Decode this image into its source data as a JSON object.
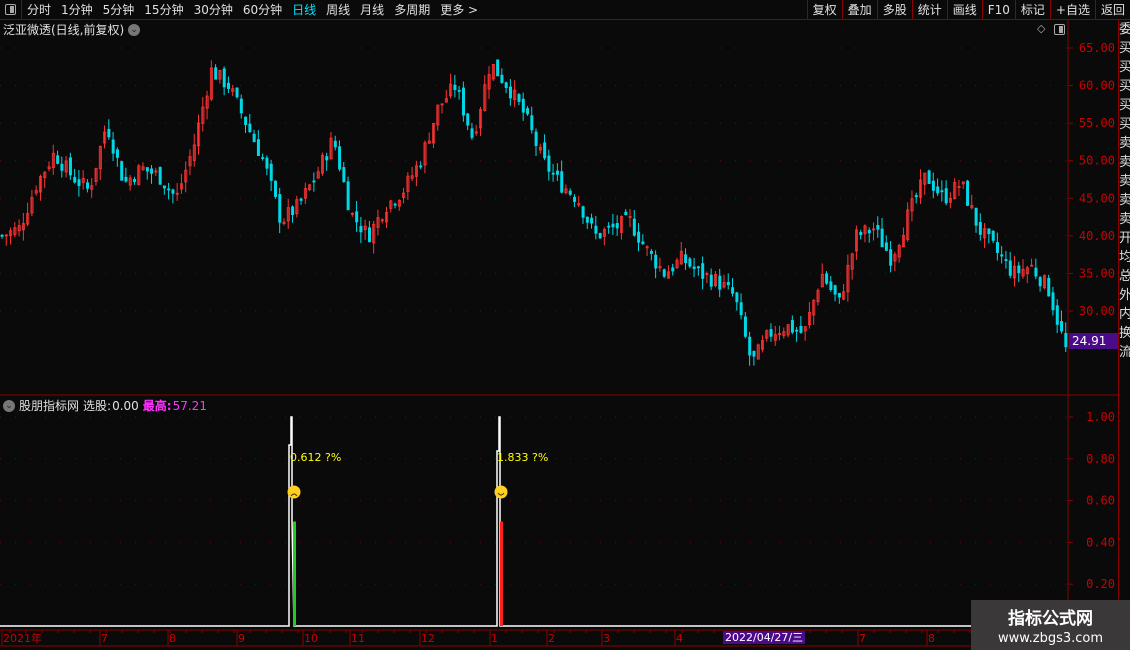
{
  "toolbar": {
    "periods": [
      "分时",
      "1分钟",
      "5分钟",
      "15分钟",
      "30分钟",
      "60分钟",
      "日线",
      "周线",
      "月线",
      "多周期",
      "更多 >"
    ],
    "active": "日线",
    "right_buttons": [
      "复权",
      "叠加",
      "多股",
      "统计",
      "画线",
      "F10",
      "标记",
      "+自选",
      "返回"
    ]
  },
  "main": {
    "title": "泛亚微透(日线,前复权)",
    "last_price": "24.91",
    "y_ticks": [
      "65.00",
      "60.00",
      "55.00",
      "50.00",
      "45.00",
      "40.00",
      "35.00",
      "30.00"
    ]
  },
  "indicator": {
    "name": "股朋指标网",
    "select_label": "选股:",
    "select_value": "0.00",
    "high_label": "最高:",
    "high_value": "57.21",
    "y_ticks": [
      "1.00",
      "0.80",
      "0.60",
      "0.40",
      "0.20"
    ],
    "signals": [
      {
        "label": "0.612 ?%",
        "color": "#22cc22",
        "face": "sad"
      },
      {
        "label": "1.833 ?%",
        "color": "#ff2020",
        "face": "happy"
      }
    ]
  },
  "xaxis": {
    "labels": [
      "2021年",
      "7",
      "8",
      "9",
      "10",
      "11",
      "12",
      "1",
      "2",
      "3",
      "4",
      "7",
      "8"
    ],
    "cursor_date": "2022/04/27/三"
  },
  "watermark": {
    "line1": "指标公式网",
    "line2": "www.zbgs3.com"
  },
  "right_panel_glyphs": "委买买买买买卖卖卖卖卖开均总外内换流",
  "colors": {
    "up": "#ff3333",
    "down": "#00d8e8",
    "axis": "#8b0000",
    "text_axis": "#cc0000",
    "active": "#00e5ff",
    "magenta": "#ff33ff",
    "yellow": "#ffff00"
  },
  "chart_data": {
    "type": "candlestick",
    "ylim": [
      20,
      67
    ],
    "approx_close_trend": [
      40,
      41,
      47,
      51,
      48,
      46,
      55,
      47,
      49,
      48,
      45,
      52,
      62,
      60,
      55,
      50,
      42,
      44,
      48,
      53,
      43,
      40,
      44,
      46,
      50,
      57,
      60,
      53,
      63,
      60,
      56,
      50,
      47,
      45,
      40,
      41,
      42,
      38,
      35,
      37,
      35,
      34,
      32,
      23,
      27,
      28,
      27,
      35,
      31,
      40,
      41,
      37,
      43,
      48,
      45,
      47,
      41,
      38,
      35,
      36,
      33,
      24.91
    ],
    "indicator_ylim": [
      0,
      1.05
    ]
  }
}
